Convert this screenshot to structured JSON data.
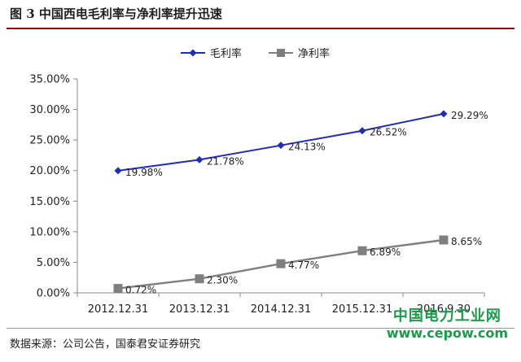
{
  "header": {
    "title": "图 3 中国西电毛利率与净利率提升迅速"
  },
  "footer": {
    "source": "数据来源：公司公告，国泰君安证券研究"
  },
  "watermark": {
    "site_name": "中国电力工业网",
    "url": "www.cepow.com"
  },
  "colors": {
    "gross": "#1f2db5",
    "net": "#7f7f7f",
    "rule": "#8b0000",
    "watermark": "#1a9a4a"
  },
  "chart_data": {
    "type": "line",
    "categories": [
      "2012.12.31",
      "2013.12.31",
      "2014.12.31",
      "2015.12.31",
      "2016.9.30"
    ],
    "series": [
      {
        "name": "毛利率",
        "values": [
          19.98,
          21.78,
          24.13,
          26.52,
          29.29
        ],
        "labels": [
          "19.98%",
          "21.78%",
          "24.13%",
          "26.52%",
          "29.29%"
        ],
        "marker": "diamond"
      },
      {
        "name": "净利率",
        "values": [
          0.72,
          2.3,
          4.77,
          6.89,
          8.65
        ],
        "labels": [
          "0.72%",
          "2.30%",
          "4.77%",
          "6.89%",
          "8.65%"
        ],
        "marker": "square"
      }
    ],
    "yticks": [
      "0.00%",
      "5.00%",
      "10.00%",
      "15.00%",
      "20.00%",
      "25.00%",
      "30.00%",
      "35.00%"
    ],
    "ylim": [
      0,
      35
    ],
    "grid": false,
    "legend_position": "top"
  }
}
